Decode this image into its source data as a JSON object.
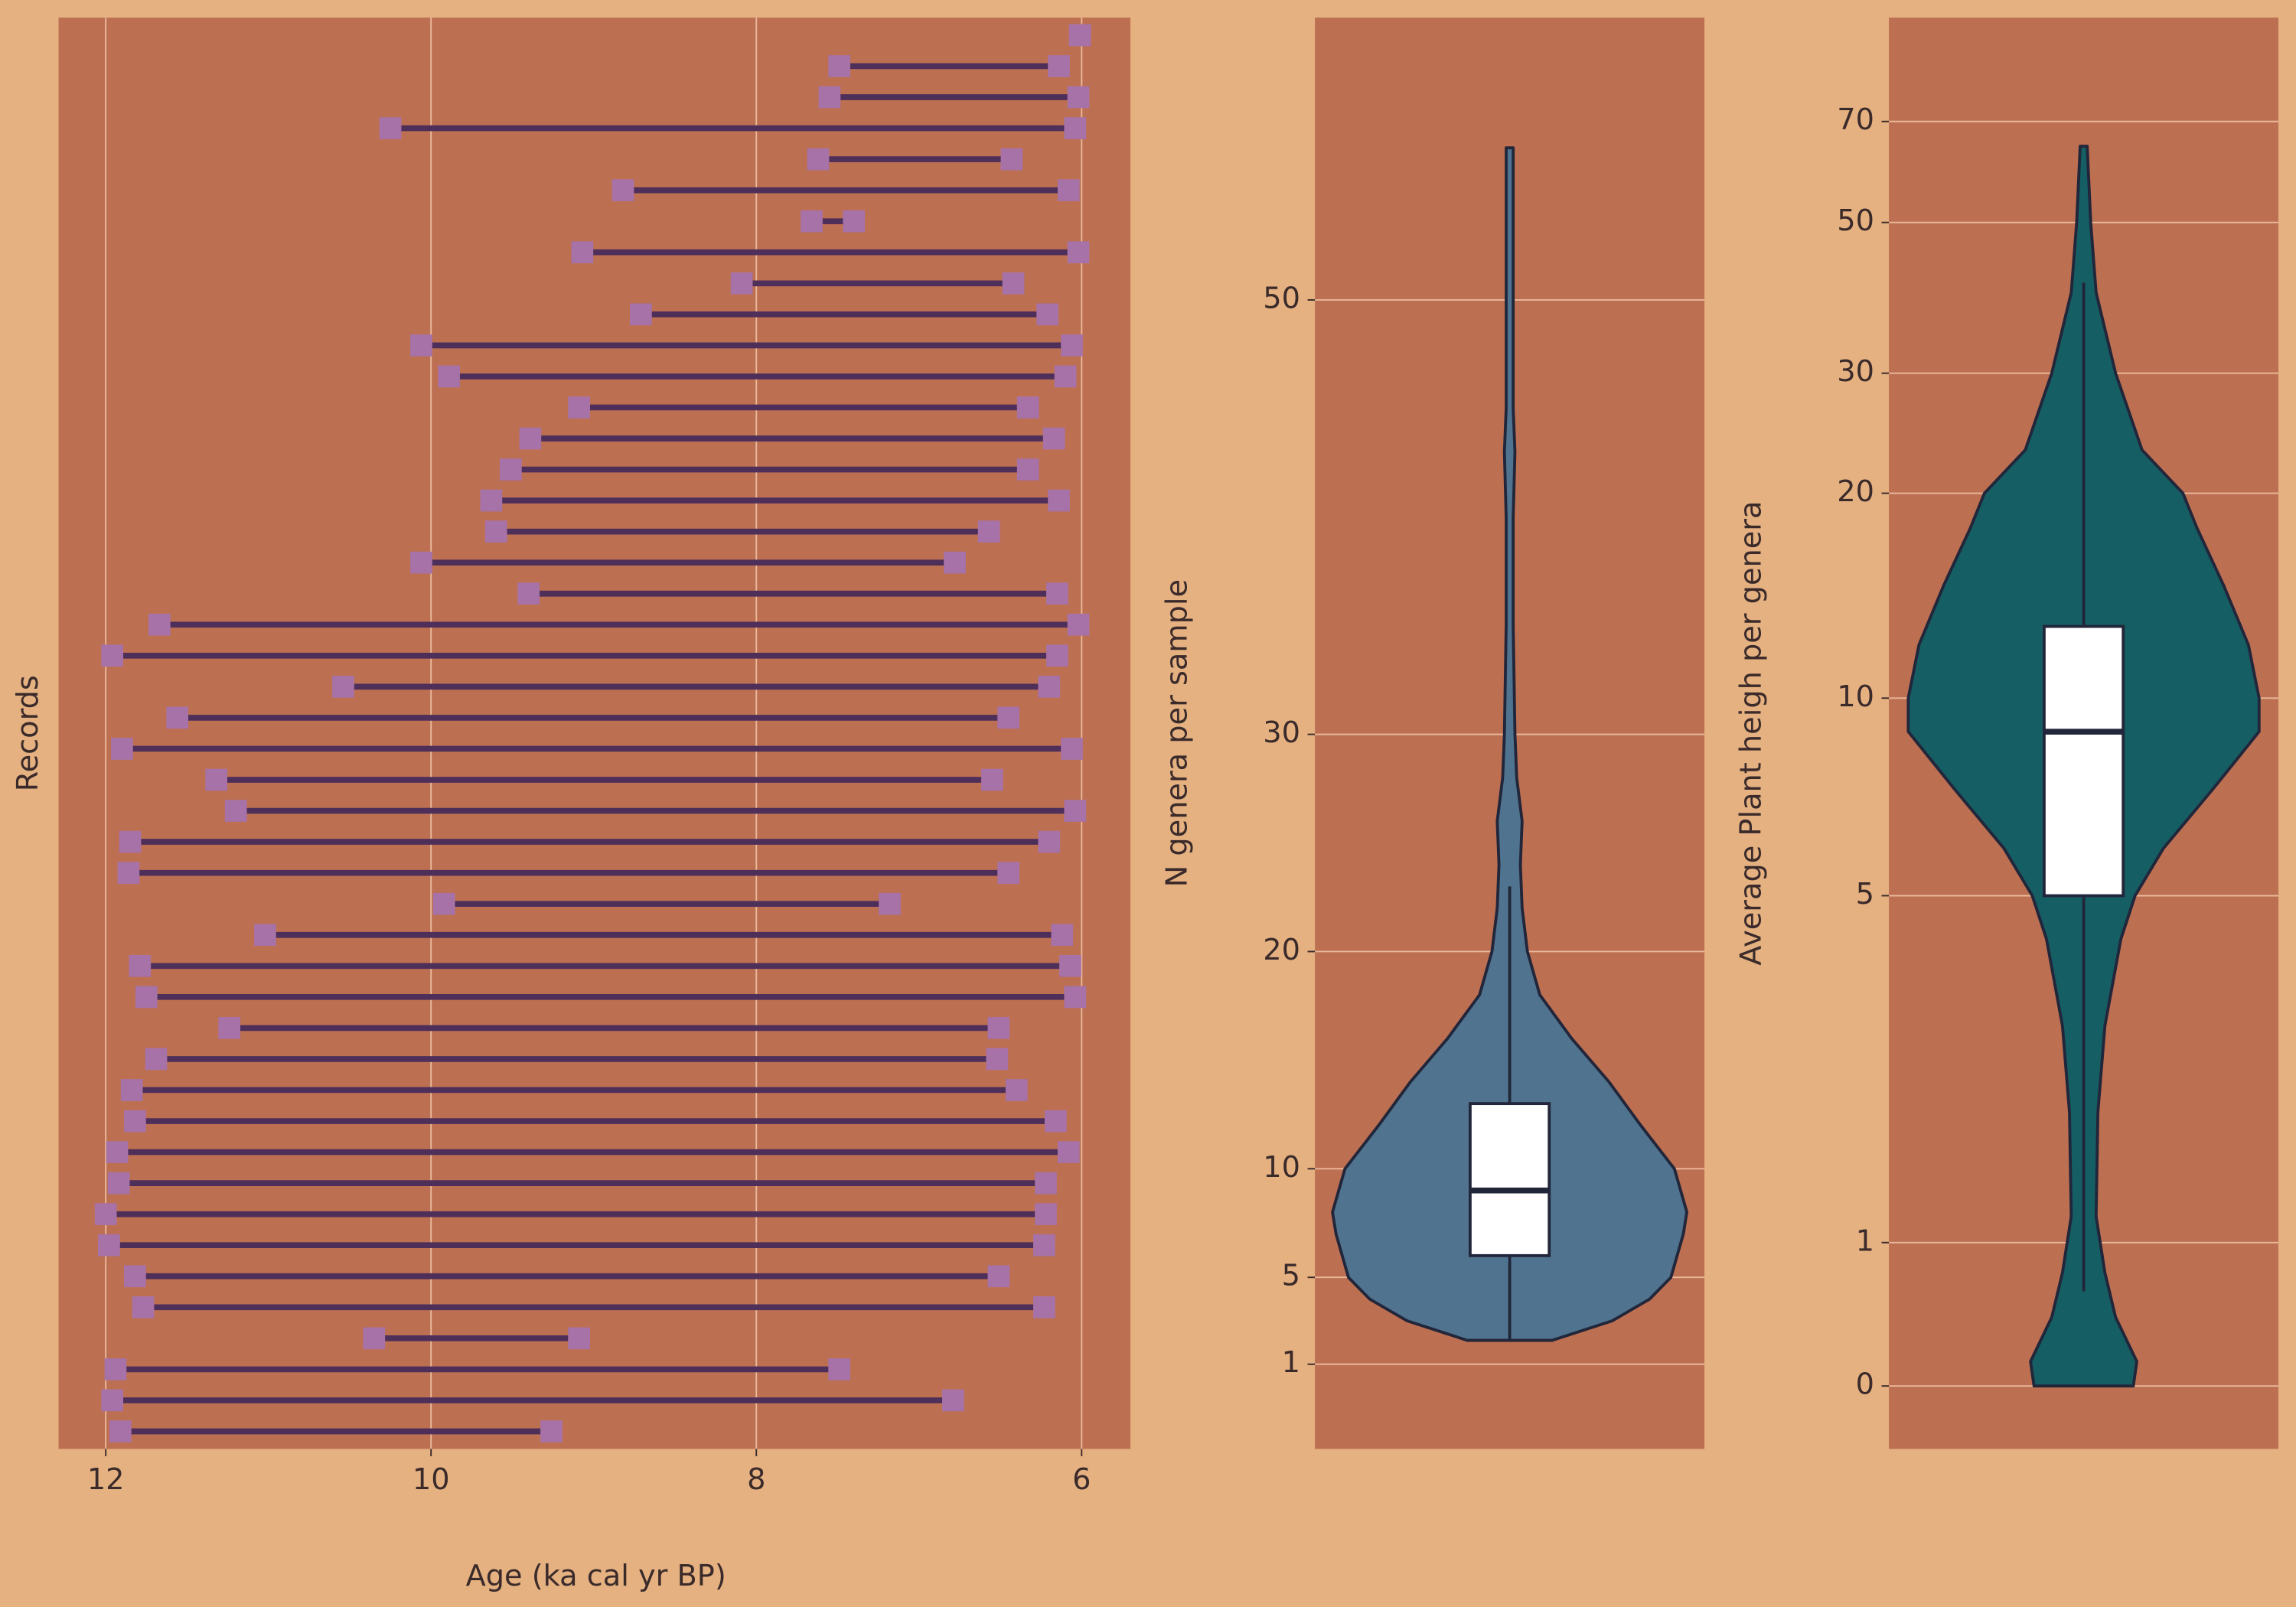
{
  "chart_data": [
    {
      "type": "dumbbell",
      "xlabel": "Age (ka cal yr BP)",
      "ylabel": "Records",
      "xlim": [
        12.29,
        5.7
      ],
      "xticks": [
        12,
        10,
        8,
        6
      ],
      "grid": true,
      "line_color": "#4d2f5a",
      "marker_color": "#a772a7",
      "start": [
        6.01,
        7.49,
        7.55,
        10.25,
        7.62,
        8.82,
        7.66,
        9.07,
        8.09,
        8.71,
        10.06,
        9.89,
        9.09,
        9.39,
        9.51,
        9.63,
        9.6,
        10.06,
        9.4,
        11.67,
        11.96,
        10.54,
        11.56,
        11.9,
        11.32,
        11.2,
        11.85,
        11.86,
        9.92,
        11.02,
        11.79,
        11.75,
        11.24,
        11.69,
        11.84,
        11.82,
        11.93,
        11.92,
        12.0,
        11.98,
        11.82,
        11.77,
        10.35,
        11.94,
        11.96,
        11.91
      ],
      "end": [
        6.01,
        6.14,
        6.02,
        6.04,
        6.43,
        6.08,
        7.4,
        6.02,
        6.42,
        6.21,
        6.06,
        6.1,
        6.33,
        6.17,
        6.33,
        6.14,
        6.57,
        6.78,
        6.15,
        6.02,
        6.15,
        6.2,
        6.45,
        6.06,
        6.55,
        6.04,
        6.2,
        6.45,
        7.18,
        6.12,
        6.07,
        6.04,
        6.51,
        6.52,
        6.4,
        6.16,
        6.08,
        6.22,
        6.22,
        6.23,
        6.51,
        6.23,
        9.09,
        7.49,
        6.79,
        9.26
      ]
    },
    {
      "type": "violin",
      "ylabel": "N genera per sample",
      "ylim": [
        -2.9,
        63
      ],
      "yticks": [
        1,
        5,
        10,
        20,
        30,
        50
      ],
      "grid": true,
      "color": "#50748f",
      "box": {
        "whisker_low": 2.1,
        "q1": 6,
        "median": 9,
        "q3": 13,
        "whisker_high": 23
      },
      "violin": {
        "y": [
          2.1,
          3,
          4,
          5,
          7,
          8,
          10,
          12,
          14,
          16,
          18,
          20,
          22,
          24,
          26,
          28,
          30,
          35,
          40,
          43,
          45,
          48,
          50,
          53,
          57
        ],
        "density": [
          0.24,
          0.58,
          0.79,
          0.91,
          0.98,
          1,
          0.93,
          0.74,
          0.56,
          0.35,
          0.17,
          0.1,
          0.07,
          0.06,
          0.07,
          0.04,
          0.03,
          0.02,
          0.02,
          0.03,
          0.02,
          0.02,
          0.02,
          0.02,
          0.02
        ]
      }
    },
    {
      "type": "violin",
      "ylabel": "Average Plant heigh per genera",
      "ylim": [
        -0.44,
        90.6
      ],
      "yticks": [
        0,
        1,
        5,
        10,
        20,
        30,
        50,
        70
      ],
      "grid": true,
      "color": "#155e63",
      "box": {
        "whisker_low": 0.66,
        "q1": 5,
        "median": 9.15,
        "q3": 13.5,
        "whisker_high": 42
      },
      "violin": {
        "y": [
          0,
          0.17,
          0.48,
          0.79,
          1.3,
          2.5,
          3.5,
          4.5,
          5,
          6.2,
          7.7,
          9.15,
          10,
          12.6,
          15.5,
          18.3,
          20,
          23.6,
          30,
          40.7,
          50,
          65.1
        ],
        "density": [
          0.28,
          0.3,
          0.18,
          0.12,
          0.07,
          0.08,
          0.12,
          0.21,
          0.29,
          0.45,
          0.73,
          0.99,
          0.99,
          0.93,
          0.79,
          0.64,
          0.56,
          0.33,
          0.18,
          0.07,
          0.04,
          0.02
        ]
      }
    }
  ]
}
